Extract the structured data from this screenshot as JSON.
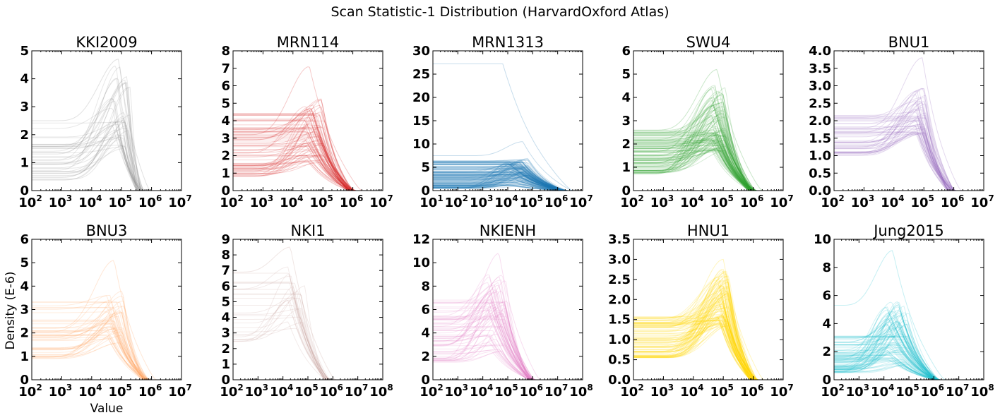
{
  "figure": {
    "title": "Scan Statistic-1 Distribution (HarvardOxford Atlas)",
    "xlabel": "Value",
    "ylabel": "Density (E-6)"
  },
  "chart_data": [
    {
      "type": "line",
      "title": "KKI2009",
      "color": "#888888",
      "xlim_exp": [
        2,
        7
      ],
      "xticks_exp": [
        2,
        3,
        4,
        5,
        6,
        7
      ],
      "ylim": [
        0,
        5
      ],
      "yticks": [
        "0",
        "1",
        "2",
        "3",
        "4",
        "5"
      ],
      "curves": {
        "count": 40,
        "flat_range": [
          0.3,
          2.5
        ],
        "peak_range": [
          1.5,
          4.7
        ],
        "peak_exp": [
          4.7,
          5.3
        ],
        "end_exp": 5.75
      },
      "highlight": [
        {
          "flat": 2.5,
          "peak": 4.7,
          "peak_exp": 4.9
        }
      ]
    },
    {
      "type": "line",
      "title": "MRN114",
      "color": "#d62728",
      "xlim_exp": [
        2,
        7
      ],
      "xticks_exp": [
        2,
        3,
        4,
        5,
        6,
        7
      ],
      "ylim": [
        0,
        8
      ],
      "yticks": [
        "0",
        "1",
        "2",
        "3",
        "4",
        "5",
        "6",
        "7",
        "8"
      ],
      "curves": {
        "count": 80,
        "flat_range": [
          0.8,
          4.5
        ],
        "peak_range": [
          1.6,
          5.3
        ],
        "peak_exp": [
          4.4,
          5.1
        ],
        "end_exp": 6.1
      },
      "highlight": [
        {
          "flat": 3.2,
          "peak": 7.1,
          "peak_exp": 4.55
        }
      ]
    },
    {
      "type": "line",
      "title": "MRN1313",
      "color": "#1f77b4",
      "xlim_exp": [
        1,
        7
      ],
      "xticks_exp": [
        1,
        2,
        3,
        4,
        5,
        6,
        7
      ],
      "ylim": [
        0,
        30
      ],
      "yticks": [
        "0",
        "5",
        "10",
        "15",
        "20",
        "25",
        "30"
      ],
      "curves": {
        "count": 150,
        "flat_range": [
          0.5,
          6.5
        ],
        "peak_range": [
          1.0,
          7.0
        ],
        "peak_exp": [
          4.0,
          4.9
        ],
        "end_exp": 6.4
      },
      "highlight": [
        {
          "flat": 27.2,
          "peak": 27.2,
          "peak_exp": 3.8
        },
        {
          "flat": 7.5,
          "peak": 10.5,
          "peak_exp": 4.6
        }
      ]
    },
    {
      "type": "line",
      "title": "SWU4",
      "color": "#2ca02c",
      "xlim_exp": [
        2,
        7
      ],
      "xticks_exp": [
        2,
        3,
        4,
        5,
        6,
        7
      ],
      "ylim": [
        0,
        6
      ],
      "yticks": [
        "0",
        "1",
        "2",
        "3",
        "4",
        "5",
        "6"
      ],
      "curves": {
        "count": 110,
        "flat_range": [
          0.7,
          2.6
        ],
        "peak_range": [
          1.7,
          4.6
        ],
        "peak_exp": [
          4.6,
          5.1
        ],
        "end_exp": 6.1
      },
      "highlight": [
        {
          "flat": 2.6,
          "peak": 5.2,
          "peak_exp": 4.8
        }
      ]
    },
    {
      "type": "line",
      "title": "BNU1",
      "color": "#9467bd",
      "xlim_exp": [
        2,
        7
      ],
      "xticks_exp": [
        2,
        3,
        4,
        5,
        6,
        7
      ],
      "ylim": [
        0,
        4
      ],
      "yticks": [
        "0.0",
        "0.5",
        "1.0",
        "1.5",
        "2.0",
        "2.5",
        "3.0",
        "3.5",
        "4.0"
      ],
      "curves": {
        "count": 55,
        "flat_range": [
          1.0,
          2.2
        ],
        "peak_range": [
          1.6,
          3.0
        ],
        "peak_exp": [
          4.7,
          5.1
        ],
        "end_exp": 6.05
      },
      "highlight": [
        {
          "flat": 1.8,
          "peak": 3.8,
          "peak_exp": 4.95
        }
      ]
    },
    {
      "type": "line",
      "title": "BNU3",
      "color": "#ff9f5a",
      "xlim_exp": [
        2,
        7
      ],
      "xticks_exp": [
        2,
        3,
        4,
        5,
        6,
        7
      ],
      "ylim": [
        0,
        6
      ],
      "yticks": [
        "0",
        "1",
        "2",
        "3",
        "4",
        "5",
        "6"
      ],
      "curves": {
        "count": 48,
        "flat_range": [
          0.9,
          3.4
        ],
        "peak_range": [
          1.5,
          3.8
        ],
        "peak_exp": [
          4.5,
          5.1
        ],
        "end_exp": 5.95
      },
      "highlight": [
        {
          "flat": 2.2,
          "peak": 5.1,
          "peak_exp": 4.75
        }
      ]
    },
    {
      "type": "line",
      "title": "NKI1",
      "color": "#c49c94",
      "xlim_exp": [
        2,
        8
      ],
      "xticks_exp": [
        2,
        3,
        4,
        5,
        6,
        7,
        8
      ],
      "ylim": [
        0,
        9
      ],
      "yticks": [
        "0",
        "1",
        "2",
        "3",
        "4",
        "5",
        "6",
        "7",
        "8",
        "9"
      ],
      "curves": {
        "count": 26,
        "flat_range": [
          2.2,
          6.9
        ],
        "peak_range": [
          3.2,
          7.5
        ],
        "peak_exp": [
          4.2,
          4.9
        ],
        "end_exp": 5.9
      },
      "highlight": [
        {
          "flat": 6.9,
          "peak": 8.5,
          "peak_exp": 4.3
        }
      ]
    },
    {
      "type": "line",
      "title": "NKIENH",
      "color": "#e377c2",
      "xlim_exp": [
        2,
        8
      ],
      "xticks_exp": [
        2,
        3,
        4,
        5,
        6,
        7,
        8
      ],
      "ylim": [
        0,
        12
      ],
      "yticks": [
        "0",
        "2",
        "4",
        "6",
        "8",
        "10",
        "12"
      ],
      "curves": {
        "count": 65,
        "flat_range": [
          1.5,
          6.9
        ],
        "peak_range": [
          2.4,
          9.0
        ],
        "peak_exp": [
          4.2,
          5.0
        ],
        "end_exp": 6.1
      },
      "highlight": [
        {
          "flat": 4.8,
          "peak": 10.8,
          "peak_exp": 4.65
        }
      ]
    },
    {
      "type": "line",
      "title": "HNU1",
      "color": "#ffd700",
      "xlim_exp": [
        2,
        7
      ],
      "xticks_exp": [
        2,
        3,
        4,
        5,
        6,
        7
      ],
      "ylim": [
        0,
        3.5
      ],
      "yticks": [
        "0.0",
        "0.5",
        "1.0",
        "1.5",
        "2.0",
        "2.5",
        "3.0",
        "3.5"
      ],
      "curves": {
        "count": 110,
        "flat_range": [
          0.55,
          1.6
        ],
        "peak_range": [
          1.3,
          2.8
        ],
        "peak_exp": [
          4.8,
          5.2
        ],
        "end_exp": 6.15
      },
      "highlight": [
        {
          "flat": 1.3,
          "peak": 3.0,
          "peak_exp": 5.0
        }
      ]
    },
    {
      "type": "line",
      "title": "Jung2015",
      "color": "#17becf",
      "xlim_exp": [
        2,
        8
      ],
      "xticks_exp": [
        2,
        3,
        4,
        5,
        6,
        7,
        8
      ],
      "ylim": [
        0,
        10
      ],
      "yticks": [
        "0",
        "2",
        "4",
        "6",
        "8",
        "10"
      ],
      "curves": {
        "count": 95,
        "flat_range": [
          0.5,
          3.2
        ],
        "peak_range": [
          1.0,
          5.6
        ],
        "peak_exp": [
          4.1,
          5.0
        ],
        "end_exp": 6.25
      },
      "highlight": [
        {
          "flat": 5.3,
          "peak": 9.2,
          "peak_exp": 4.35
        }
      ]
    }
  ]
}
